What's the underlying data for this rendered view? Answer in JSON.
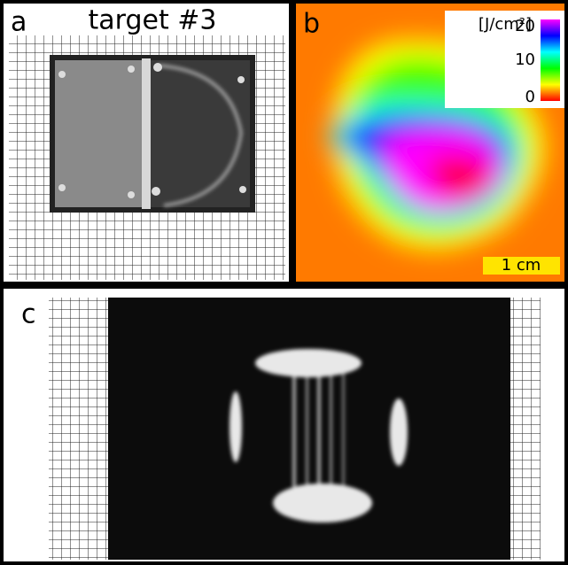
{
  "panels": {
    "a": {
      "label": "a",
      "title": "target #3"
    },
    "b": {
      "label": "b",
      "colorbar": {
        "unit": "[J/cm²]",
        "ticks": [
          20,
          10,
          0
        ],
        "range": [
          0,
          20
        ]
      },
      "scale_bar": "1 cm"
    },
    "c": {
      "label": "c"
    }
  }
}
